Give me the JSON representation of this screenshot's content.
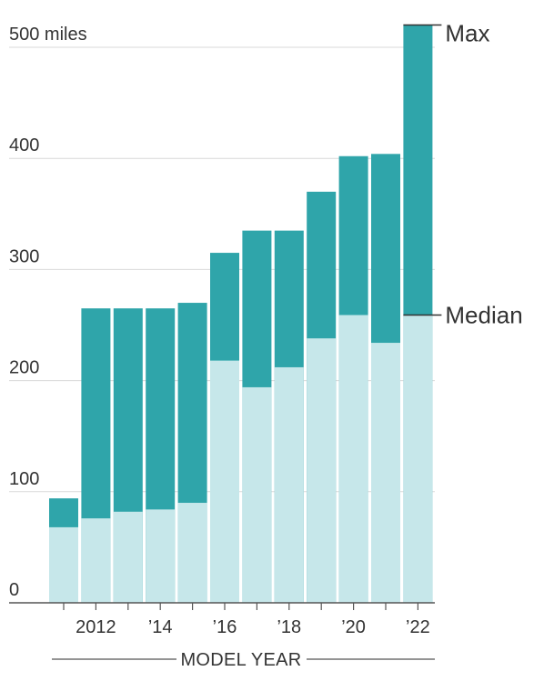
{
  "chart_data": {
    "type": "bar",
    "title": "",
    "xlabel": "MODEL YEAR",
    "ylabel": "",
    "ylim": [
      0,
      520
    ],
    "y_ticks": [
      0,
      100,
      200,
      300,
      400,
      500
    ],
    "y_tick_labels": [
      "0",
      "100",
      "200",
      "300",
      "400",
      "500 miles"
    ],
    "grid": true,
    "categories": [
      "2011",
      "2012",
      "2013",
      "2014",
      "2015",
      "2016",
      "2017",
      "2018",
      "2019",
      "2020",
      "2021",
      "2022"
    ],
    "x_tick_labels": [
      {
        "category": "2012",
        "label": "2012"
      },
      {
        "category": "2014",
        "label": "’14"
      },
      {
        "category": "2016",
        "label": "’16"
      },
      {
        "category": "2018",
        "label": "’18"
      },
      {
        "category": "2020",
        "label": "’20"
      },
      {
        "category": "2022",
        "label": "’22"
      }
    ],
    "series": [
      {
        "name": "Median",
        "values": [
          68,
          76,
          82,
          84,
          90,
          218,
          194,
          212,
          238,
          259,
          234,
          259
        ]
      },
      {
        "name": "Max",
        "values": [
          94,
          265,
          265,
          265,
          270,
          315,
          335,
          335,
          370,
          402,
          404,
          520
        ]
      }
    ],
    "colors": {
      "max": "#2fa5aa",
      "median": "#c6e7ea",
      "grid": "#d9d9d9",
      "axis": "#555555",
      "text": "#333333"
    }
  }
}
